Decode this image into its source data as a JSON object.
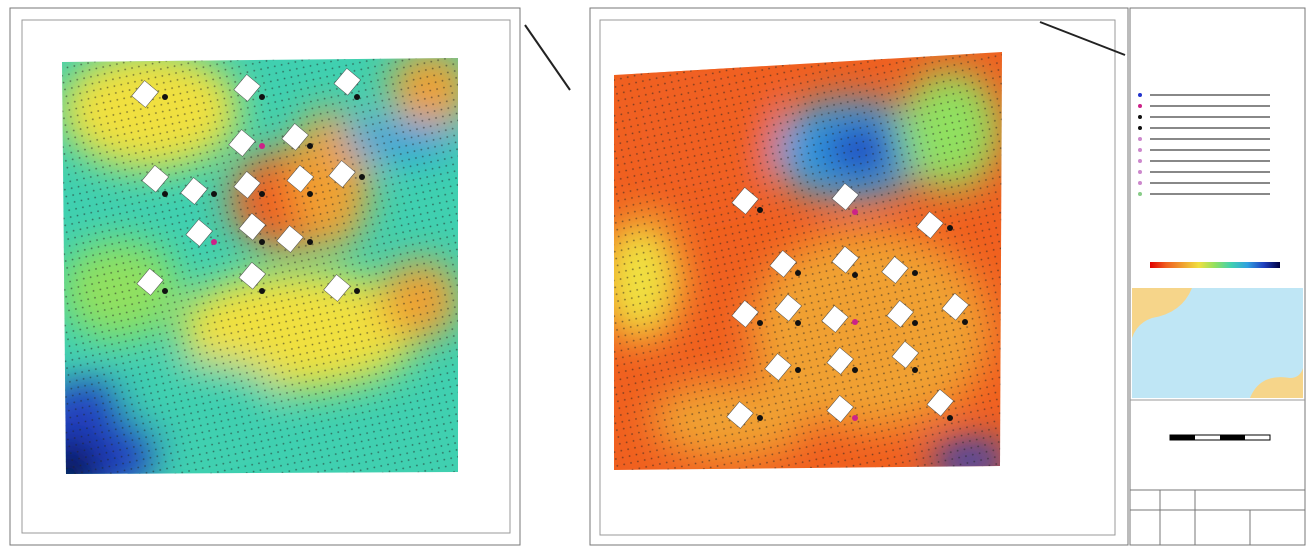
{
  "legend": {
    "color_scale": [
      "#e00000",
      "#f06020",
      "#f0a030",
      "#f0e040",
      "#90e060",
      "#40d0b0",
      "#30a0e0",
      "#2040c0",
      "#000040"
    ]
  }
}
